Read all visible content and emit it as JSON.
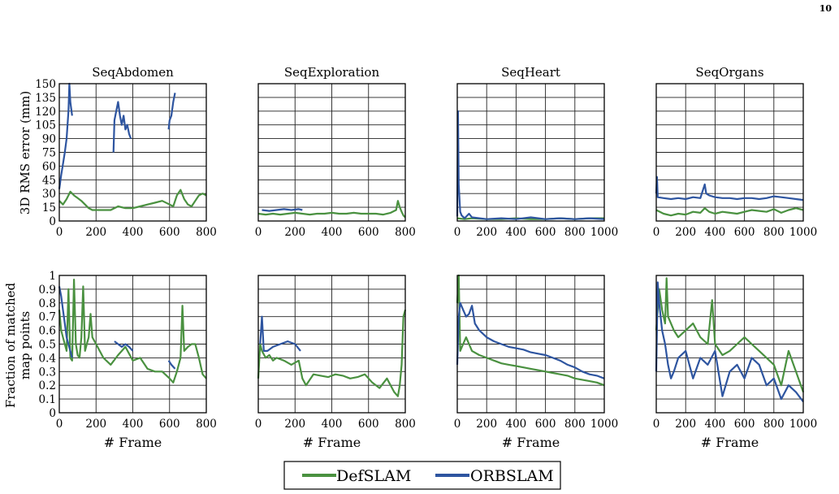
{
  "page_number": "10",
  "colors": {
    "defslam": "#4a9140",
    "orbslam": "#2e55a0"
  },
  "legend": {
    "defslam": "DefSLAM",
    "orbslam": "ORBSLAM"
  },
  "row_labels": {
    "top": "3D RMS error (mm)",
    "bottom_line1": "Fraction of matched",
    "bottom_line2": "map points"
  },
  "x_axis_label": "# Frame",
  "chart_data": [
    {
      "type": "line",
      "title": "SeqAbdomen",
      "metric": "rms",
      "xlim": [
        0,
        800
      ],
      "ylim": [
        0,
        150
      ],
      "xticks": [
        0,
        200,
        400,
        600,
        800
      ],
      "yticks": [
        0,
        15,
        30,
        45,
        60,
        75,
        90,
        105,
        120,
        135,
        150
      ],
      "series": [
        {
          "name": "DefSLAM",
          "x": [
            0,
            20,
            40,
            60,
            80,
            100,
            120,
            140,
            160,
            180,
            200,
            240,
            280,
            320,
            360,
            400,
            440,
            480,
            520,
            560,
            600,
            620,
            640,
            660,
            680,
            700,
            720,
            740,
            760,
            780,
            800
          ],
          "y": [
            22,
            18,
            24,
            32,
            28,
            25,
            22,
            18,
            14,
            12,
            12,
            12,
            12,
            16,
            14,
            14,
            16,
            18,
            20,
            22,
            18,
            16,
            28,
            34,
            24,
            18,
            16,
            22,
            28,
            30,
            28
          ]
        },
        {
          "name": "ORBSLAM",
          "x": [
            0,
            10,
            20,
            30,
            40,
            50,
            55,
            60,
            70
          ],
          "y": [
            35,
            50,
            62,
            75,
            90,
            120,
            150,
            130,
            115
          ]
        },
        {
          "name": "ORBSLAM",
          "x": [
            295,
            300,
            310,
            320,
            330,
            340,
            350,
            360,
            370,
            380,
            390
          ],
          "y": [
            75,
            110,
            120,
            130,
            115,
            105,
            115,
            100,
            105,
            95,
            90
          ]
        },
        {
          "name": "ORBSLAM",
          "x": [
            595,
            600,
            610,
            620,
            630
          ],
          "y": [
            100,
            110,
            115,
            130,
            140
          ]
        }
      ]
    },
    {
      "type": "line",
      "title": "SeqExploration",
      "metric": "rms",
      "xlim": [
        0,
        800
      ],
      "ylim": [
        0,
        150
      ],
      "xticks": [
        0,
        200,
        400,
        600,
        800
      ],
      "yticks": [
        0,
        15,
        30,
        45,
        60,
        75,
        90,
        105,
        120,
        135,
        150
      ],
      "series": [
        {
          "name": "DefSLAM",
          "x": [
            0,
            40,
            80,
            120,
            160,
            200,
            240,
            280,
            320,
            360,
            400,
            440,
            480,
            520,
            560,
            600,
            640,
            680,
            720,
            750,
            760,
            770,
            780,
            790,
            800
          ],
          "y": [
            8,
            7,
            8,
            7,
            8,
            9,
            8,
            7,
            8,
            8,
            9,
            8,
            8,
            9,
            8,
            8,
            8,
            7,
            9,
            12,
            22,
            15,
            10,
            6,
            4
          ]
        },
        {
          "name": "ORBSLAM",
          "x": [
            20,
            60,
            100,
            140,
            180,
            220,
            240
          ],
          "y": [
            12,
            11,
            12,
            13,
            12,
            13,
            12
          ]
        }
      ]
    },
    {
      "type": "line",
      "title": "SeqHeart",
      "metric": "rms",
      "xlim": [
        0,
        1000
      ],
      "ylim": [
        0,
        150
      ],
      "xticks": [
        0,
        200,
        400,
        600,
        800,
        1000
      ],
      "yticks": [
        0,
        15,
        30,
        45,
        60,
        75,
        90,
        105,
        120,
        135,
        150
      ],
      "series": [
        {
          "name": "DefSLAM",
          "x": [
            0,
            50,
            100,
            200,
            300,
            400,
            500,
            600,
            700,
            800,
            900,
            1000
          ],
          "y": [
            3,
            2,
            3,
            2,
            2,
            3,
            2,
            2,
            3,
            2,
            3,
            3
          ]
        },
        {
          "name": "ORBSLAM",
          "x": [
            0,
            5,
            10,
            20,
            30,
            50,
            80,
            100,
            150,
            200,
            300,
            400,
            500,
            600,
            700,
            800,
            900,
            1000
          ],
          "y": [
            5,
            120,
            40,
            10,
            6,
            3,
            8,
            4,
            3,
            2,
            3,
            2,
            4,
            2,
            3,
            2,
            3,
            2
          ]
        }
      ]
    },
    {
      "type": "line",
      "title": "SeqOrgans",
      "metric": "rms",
      "xlim": [
        0,
        1000
      ],
      "ylim": [
        0,
        150
      ],
      "xticks": [
        0,
        200,
        400,
        600,
        800,
        1000
      ],
      "yticks": [
        0,
        15,
        30,
        45,
        60,
        75,
        90,
        105,
        120,
        135,
        150
      ],
      "series": [
        {
          "name": "DefSLAM",
          "x": [
            0,
            50,
            100,
            150,
            200,
            250,
            300,
            330,
            360,
            400,
            450,
            500,
            550,
            600,
            650,
            700,
            750,
            800,
            850,
            900,
            950,
            1000
          ],
          "y": [
            12,
            8,
            6,
            8,
            7,
            10,
            9,
            14,
            10,
            8,
            10,
            9,
            8,
            10,
            12,
            11,
            10,
            13,
            9,
            12,
            14,
            12
          ]
        },
        {
          "name": "ORBSLAM",
          "x": [
            0,
            5,
            10,
            50,
            100,
            150,
            200,
            250,
            300,
            330,
            340,
            360,
            400,
            450,
            500,
            550,
            600,
            650,
            700,
            750,
            800,
            850,
            900,
            950,
            1000
          ],
          "y": [
            30,
            48,
            26,
            25,
            24,
            25,
            24,
            26,
            25,
            40,
            30,
            28,
            26,
            25,
            25,
            24,
            25,
            25,
            24,
            25,
            27,
            26,
            25,
            24,
            23
          ]
        }
      ]
    },
    {
      "type": "line",
      "title": "",
      "metric": "fraction",
      "xlim": [
        0,
        800
      ],
      "ylim": [
        0,
        1
      ],
      "xticks": [
        0,
        200,
        400,
        600,
        800
      ],
      "yticks": [
        0,
        0.1,
        0.2,
        0.3,
        0.4,
        0.5,
        0.6,
        0.7,
        0.8,
        0.9,
        1
      ],
      "series": [
        {
          "name": "DefSLAM",
          "x": [
            0,
            10,
            20,
            30,
            40,
            50,
            60,
            70,
            80,
            90,
            100,
            110,
            120,
            130,
            140,
            150,
            160,
            170,
            180,
            200,
            240,
            280,
            320,
            360,
            400,
            440,
            480,
            520,
            560,
            600,
            620,
            640,
            660,
            670,
            680,
            700,
            720,
            740,
            760,
            780,
            800
          ],
          "y": [
            0.75,
            0.6,
            0.55,
            0.5,
            0.45,
            0.9,
            0.4,
            0.38,
            0.97,
            0.5,
            0.42,
            0.4,
            0.55,
            0.92,
            0.45,
            0.5,
            0.55,
            0.72,
            0.55,
            0.5,
            0.4,
            0.35,
            0.42,
            0.48,
            0.38,
            0.4,
            0.32,
            0.3,
            0.3,
            0.25,
            0.22,
            0.3,
            0.4,
            0.78,
            0.45,
            0.48,
            0.5,
            0.5,
            0.4,
            0.28,
            0.25
          ]
        },
        {
          "name": "ORBSLAM",
          "x": [
            0,
            10,
            20,
            30,
            40,
            50,
            60,
            70
          ],
          "y": [
            0.92,
            0.85,
            0.75,
            0.65,
            0.55,
            0.5,
            0.45,
            0.4
          ]
        },
        {
          "name": "ORBSLAM",
          "x": [
            300,
            320,
            340,
            360,
            380,
            400
          ],
          "y": [
            0.52,
            0.5,
            0.48,
            0.5,
            0.48,
            0.45
          ]
        },
        {
          "name": "ORBSLAM",
          "x": [
            595,
            610,
            630
          ],
          "y": [
            0.38,
            0.35,
            0.32
          ]
        }
      ]
    },
    {
      "type": "line",
      "title": "",
      "metric": "fraction",
      "xlim": [
        0,
        800
      ],
      "ylim": [
        0,
        1
      ],
      "xticks": [
        0,
        200,
        400,
        600,
        800
      ],
      "yticks": [
        0,
        0.1,
        0.2,
        0.3,
        0.4,
        0.5,
        0.6,
        0.7,
        0.8,
        0.9,
        1
      ],
      "series": [
        {
          "name": "DefSLAM",
          "x": [
            0,
            10,
            20,
            40,
            60,
            80,
            100,
            140,
            180,
            220,
            240,
            260,
            300,
            340,
            380,
            420,
            460,
            500,
            540,
            580,
            620,
            660,
            700,
            740,
            760,
            770,
            780,
            790,
            800
          ],
          "y": [
            0.25,
            0.5,
            0.45,
            0.4,
            0.42,
            0.38,
            0.4,
            0.38,
            0.35,
            0.38,
            0.25,
            0.2,
            0.28,
            0.27,
            0.26,
            0.28,
            0.27,
            0.25,
            0.26,
            0.28,
            0.22,
            0.18,
            0.25,
            0.15,
            0.12,
            0.2,
            0.35,
            0.7,
            0.75
          ]
        },
        {
          "name": "ORBSLAM",
          "x": [
            10,
            20,
            30,
            50,
            80,
            120,
            160,
            200,
            230
          ],
          "y": [
            0.5,
            0.7,
            0.45,
            0.45,
            0.48,
            0.5,
            0.52,
            0.5,
            0.45
          ]
        }
      ]
    },
    {
      "type": "line",
      "title": "",
      "metric": "fraction",
      "xlim": [
        0,
        1000
      ],
      "ylim": [
        0,
        1
      ],
      "xticks": [
        0,
        200,
        400,
        600,
        800,
        1000
      ],
      "yticks": [
        0,
        0.1,
        0.2,
        0.3,
        0.4,
        0.5,
        0.6,
        0.7,
        0.8,
        0.9,
        1
      ],
      "series": [
        {
          "name": "DefSLAM",
          "x": [
            0,
            10,
            20,
            40,
            60,
            80,
            100,
            150,
            200,
            250,
            300,
            350,
            400,
            450,
            500,
            550,
            600,
            650,
            700,
            750,
            800,
            850,
            900,
            950,
            1000
          ],
          "y": [
            0.8,
            1.0,
            0.45,
            0.5,
            0.55,
            0.5,
            0.45,
            0.42,
            0.4,
            0.38,
            0.36,
            0.35,
            0.34,
            0.33,
            0.32,
            0.31,
            0.3,
            0.29,
            0.28,
            0.27,
            0.25,
            0.24,
            0.23,
            0.22,
            0.2
          ]
        },
        {
          "name": "ORBSLAM",
          "x": [
            0,
            10,
            20,
            40,
            60,
            80,
            100,
            120,
            150,
            200,
            250,
            300,
            350,
            400,
            450,
            500,
            550,
            600,
            650,
            700,
            750,
            800,
            850,
            900,
            950,
            1000
          ],
          "y": [
            0.35,
            0.7,
            0.8,
            0.75,
            0.7,
            0.72,
            0.78,
            0.65,
            0.6,
            0.55,
            0.52,
            0.5,
            0.48,
            0.47,
            0.46,
            0.44,
            0.43,
            0.42,
            0.4,
            0.38,
            0.35,
            0.33,
            0.3,
            0.28,
            0.27,
            0.25
          ]
        }
      ]
    },
    {
      "type": "line",
      "title": "",
      "metric": "fraction",
      "xlim": [
        0,
        1000
      ],
      "ylim": [
        0,
        1
      ],
      "xticks": [
        0,
        200,
        400,
        600,
        800,
        1000
      ],
      "yticks": [
        0,
        0.1,
        0.2,
        0.3,
        0.4,
        0.5,
        0.6,
        0.7,
        0.8,
        0.9,
        1
      ],
      "series": [
        {
          "name": "DefSLAM",
          "x": [
            0,
            20,
            40,
            60,
            70,
            80,
            100,
            120,
            150,
            200,
            250,
            300,
            350,
            380,
            400,
            450,
            500,
            550,
            600,
            650,
            700,
            750,
            800,
            850,
            900,
            950,
            1000
          ],
          "y": [
            0.6,
            0.9,
            0.75,
            0.65,
            0.98,
            0.7,
            0.65,
            0.6,
            0.55,
            0.6,
            0.65,
            0.55,
            0.5,
            0.82,
            0.5,
            0.42,
            0.45,
            0.5,
            0.55,
            0.5,
            0.45,
            0.4,
            0.35,
            0.2,
            0.45,
            0.3,
            0.15
          ]
        },
        {
          "name": "ORBSLAM",
          "x": [
            0,
            10,
            20,
            40,
            60,
            80,
            100,
            120,
            150,
            200,
            250,
            300,
            350,
            400,
            450,
            500,
            550,
            600,
            650,
            700,
            750,
            800,
            850,
            900,
            950,
            1000
          ],
          "y": [
            0.3,
            0.95,
            0.8,
            0.6,
            0.5,
            0.35,
            0.25,
            0.3,
            0.4,
            0.45,
            0.25,
            0.4,
            0.35,
            0.45,
            0.12,
            0.3,
            0.35,
            0.25,
            0.4,
            0.35,
            0.2,
            0.25,
            0.1,
            0.2,
            0.15,
            0.08
          ]
        }
      ]
    }
  ]
}
